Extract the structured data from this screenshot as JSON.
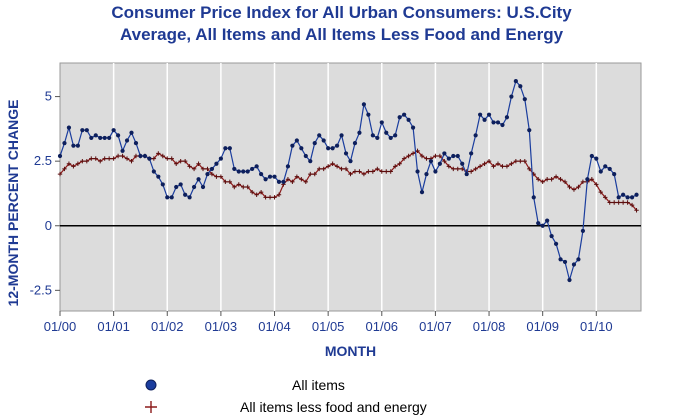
{
  "chart_data": {
    "type": "line",
    "title_lines": [
      "Consumer Price Index for All Urban Consumers: U.S.City",
      "Average, All Items and All Items Less Food and Energy"
    ],
    "xlabel": "MONTH",
    "ylabel": "12-MONTH PERCENT CHANGE",
    "ylim": [
      -3.3,
      6.3
    ],
    "yticks": [
      -2.5,
      0,
      2.5,
      5
    ],
    "ytick_labels": [
      "-2.5",
      "0",
      "2.5",
      "5"
    ],
    "xlim": [
      "2000-01",
      "2010-10"
    ],
    "xtick_labels": [
      "01/00",
      "01/01",
      "01/02",
      "01/03",
      "01/04",
      "01/05",
      "01/06",
      "01/07",
      "01/08",
      "01/09",
      "01/10"
    ],
    "grid": "vertical",
    "legend_position": "bottom",
    "series": [
      {
        "name": "All items",
        "color": "#1a3d9e",
        "marker": "dot",
        "start": "2000-01",
        "values": [
          2.7,
          3.2,
          3.8,
          3.1,
          3.1,
          3.7,
          3.7,
          3.4,
          3.5,
          3.4,
          3.4,
          3.4,
          3.7,
          3.5,
          2.9,
          3.3,
          3.6,
          3.2,
          2.7,
          2.7,
          2.6,
          2.1,
          1.9,
          1.6,
          1.1,
          1.1,
          1.5,
          1.6,
          1.2,
          1.1,
          1.5,
          1.8,
          1.5,
          2.0,
          2.2,
          2.4,
          2.6,
          3.0,
          3.0,
          2.2,
          2.1,
          2.1,
          2.1,
          2.2,
          2.3,
          2.0,
          1.8,
          1.9,
          1.9,
          1.7,
          1.7,
          2.3,
          3.1,
          3.3,
          3.0,
          2.7,
          2.5,
          3.2,
          3.5,
          3.3,
          3.0,
          3.0,
          3.1,
          3.5,
          2.8,
          2.5,
          3.2,
          3.6,
          4.7,
          4.3,
          3.5,
          3.4,
          4.0,
          3.6,
          3.4,
          3.5,
          4.2,
          4.3,
          4.1,
          3.8,
          2.1,
          1.3,
          2.0,
          2.5,
          2.1,
          2.4,
          2.8,
          2.6,
          2.7,
          2.7,
          2.4,
          2.0,
          2.8,
          3.5,
          4.3,
          4.1,
          4.3,
          4.0,
          4.0,
          3.9,
          4.2,
          5.0,
          5.6,
          5.4,
          4.9,
          3.7,
          1.1,
          0.1,
          0.0,
          0.2,
          -0.4,
          -0.7,
          -1.3,
          -1.4,
          -2.1,
          -1.5,
          -1.3,
          -0.2,
          1.8,
          2.7,
          2.6,
          2.1,
          2.3,
          2.2,
          2.0,
          1.1,
          1.2,
          1.1,
          1.1,
          1.2
        ],
        "data_labels": []
      },
      {
        "name": "All items less food and energy",
        "color": "#8b1a1a",
        "marker": "plus",
        "start": "2000-01",
        "values": [
          2.0,
          2.2,
          2.4,
          2.3,
          2.4,
          2.5,
          2.5,
          2.6,
          2.6,
          2.5,
          2.6,
          2.6,
          2.6,
          2.7,
          2.7,
          2.6,
          2.5,
          2.7,
          2.7,
          2.7,
          2.6,
          2.6,
          2.8,
          2.7,
          2.6,
          2.6,
          2.4,
          2.5,
          2.5,
          2.3,
          2.2,
          2.4,
          2.2,
          2.2,
          2.0,
          1.9,
          1.9,
          1.7,
          1.7,
          1.5,
          1.6,
          1.5,
          1.5,
          1.3,
          1.2,
          1.3,
          1.1,
          1.1,
          1.1,
          1.2,
          1.6,
          1.8,
          1.7,
          1.9,
          1.8,
          1.7,
          2.0,
          2.0,
          2.2,
          2.2,
          2.3,
          2.4,
          2.3,
          2.2,
          2.2,
          2.0,
          2.1,
          2.1,
          2.0,
          2.1,
          2.1,
          2.2,
          2.1,
          2.1,
          2.1,
          2.3,
          2.4,
          2.6,
          2.7,
          2.8,
          2.9,
          2.7,
          2.6,
          2.6,
          2.7,
          2.7,
          2.5,
          2.3,
          2.2,
          2.2,
          2.2,
          2.1,
          2.1,
          2.2,
          2.3,
          2.4,
          2.5,
          2.3,
          2.4,
          2.3,
          2.3,
          2.4,
          2.5,
          2.5,
          2.5,
          2.2,
          2.0,
          1.8,
          1.7,
          1.8,
          1.8,
          1.9,
          1.8,
          1.7,
          1.5,
          1.4,
          1.5,
          1.7,
          1.7,
          1.8,
          1.6,
          1.3,
          1.1,
          0.9,
          0.9,
          0.9,
          0.9,
          0.9,
          0.8,
          0.6
        ]
      }
    ]
  }
}
